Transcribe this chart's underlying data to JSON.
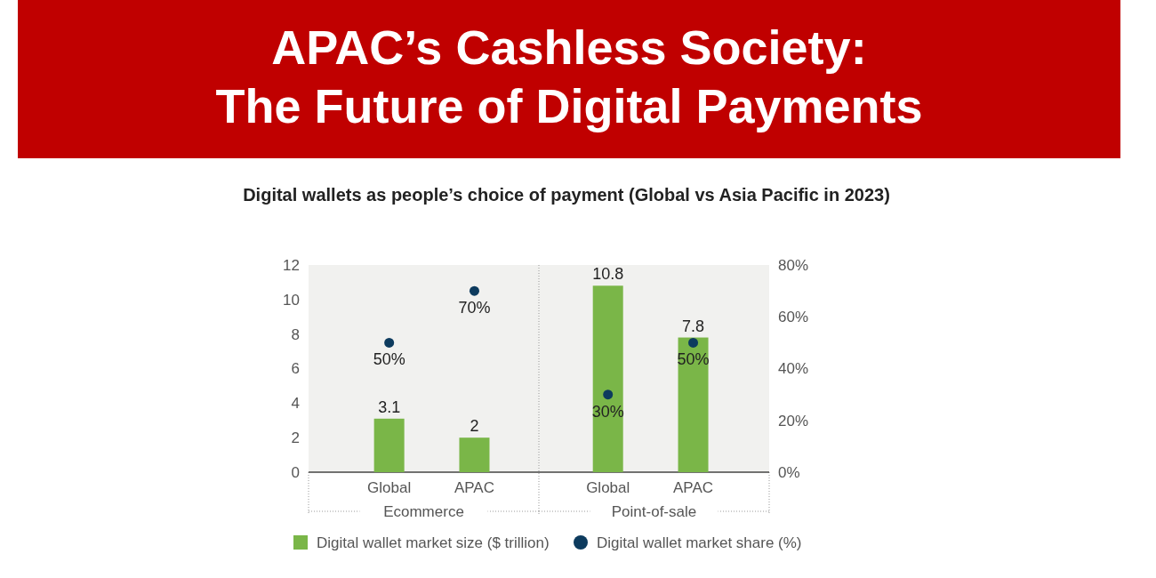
{
  "chart_data": {
    "type": "bar",
    "title": "APAC’s Cashless Society: The Future of Digital Payments",
    "subtitle": "Digital wallets as people’s choice of payment (Global vs Asia Pacific in 2023)",
    "categories": [
      "Global",
      "APAC",
      "Global",
      "APAC"
    ],
    "series": [
      {
        "name": "Digital wallet market size ($ trillion)",
        "color": "#7ab648",
        "values": [
          3.1,
          2,
          10.8,
          7.8
        ],
        "value_labels": [
          "3.1",
          "2",
          "10.8",
          "7.8"
        ]
      },
      {
        "name": "Digital wallet market share (%)",
        "type": "scatter",
        "axis": "y2",
        "color": "#0d3b5e",
        "values": [
          50,
          70,
          30,
          50
        ],
        "value_labels": [
          "50%",
          "70%",
          "30%",
          "50%"
        ]
      }
    ],
    "annotations": [
      "Ecommerce",
      "Point-of-sale"
    ],
    "ylim": [
      0,
      12
    ],
    "yticks": [
      0,
      2,
      4,
      6,
      8,
      10,
      12
    ],
    "y2lim": [
      0,
      80
    ],
    "y2ticks": [
      {
        "value": 0,
        "label": "0%"
      },
      {
        "value": 20,
        "label": "20%"
      },
      {
        "value": 40,
        "label": "40%"
      },
      {
        "value": 60,
        "label": "60%"
      },
      {
        "value": 80,
        "label": "80%"
      }
    ],
    "legend": "bottom",
    "marker": "circle",
    "grid": false
  }
}
